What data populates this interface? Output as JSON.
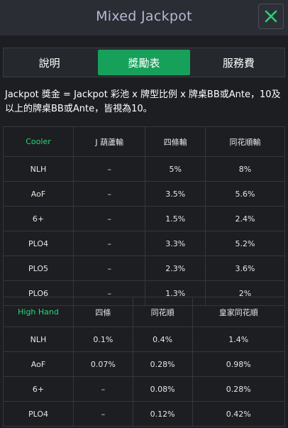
{
  "header": {
    "title": "Mixed Jackpot"
  },
  "tabs": [
    "說明",
    "獎勵表",
    "服務費"
  ],
  "description": "Jackpot 獎金 = Jackpot 彩池 x 牌型比例 x 牌桌BB或Ante，10及以上的牌桌BB或Ante，皆視為10。",
  "colors": {
    "accent": "#16a05a",
    "header_text": "#b8b9d6",
    "label_green": "#2ed47a",
    "close_icon": "#2ecc71"
  },
  "cooler_table": {
    "headers": [
      "Cooler",
      "J 葫蘆輸",
      "四條輸",
      "同花順輸"
    ],
    "rows": [
      [
        "NLH",
        "–",
        "5%",
        "8%"
      ],
      [
        "AoF",
        "–",
        "3.5%",
        "5.6%"
      ],
      [
        "6+",
        "–",
        "1.5%",
        "2.4%"
      ],
      [
        "PLO4",
        "–",
        "3.3%",
        "5.2%"
      ],
      [
        "PLO5",
        "–",
        "2.3%",
        "3.6%"
      ],
      [
        "PLO6",
        "–",
        "1.3%",
        "2%"
      ]
    ]
  },
  "highhand_table": {
    "headers": [
      "High Hand",
      "四條",
      "同花順",
      "皇家同花順"
    ],
    "rows": [
      [
        "NLH",
        "0.1%",
        "0.4%",
        "1.4%"
      ],
      [
        "AoF",
        "0.07%",
        "0.28%",
        "0.98%"
      ],
      [
        "6+",
        "–",
        "0.08%",
        "0.28%"
      ],
      [
        "PLO4",
        "–",
        "0.12%",
        "0.42%"
      ]
    ]
  }
}
